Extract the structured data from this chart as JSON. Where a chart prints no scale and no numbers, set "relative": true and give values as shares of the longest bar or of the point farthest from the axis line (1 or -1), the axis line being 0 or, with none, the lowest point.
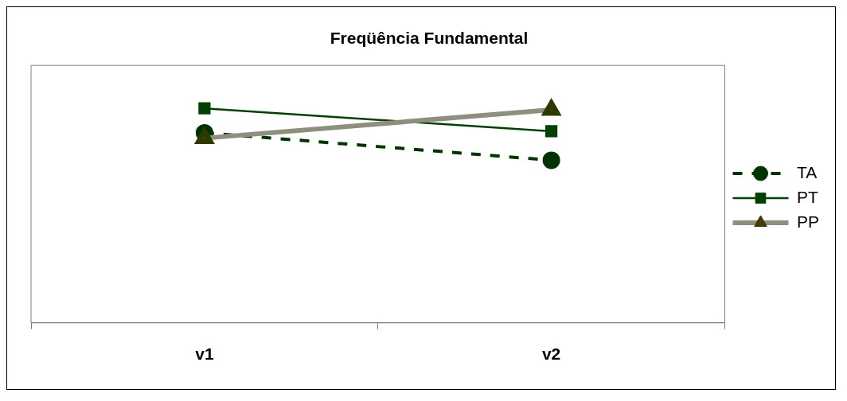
{
  "chart_data": {
    "type": "line",
    "title": "Freqüência Fundamental",
    "categories": [
      "v1",
      "v2"
    ],
    "relative": true,
    "legend": "right",
    "grid": false,
    "series": [
      {
        "name": "TA",
        "color": "#003300",
        "values": [
          0.886,
          0.758
        ],
        "marker": "circle",
        "line_style": "dashed"
      },
      {
        "name": "PT",
        "color": "#004000",
        "values": [
          1,
          0.893
        ],
        "marker": "square",
        "line_style": "solid"
      },
      {
        "name": "PP",
        "color": "#8f8f80",
        "values": [
          0.861,
          0.993
        ],
        "marker": "triangle",
        "line_style": "solid"
      }
    ]
  }
}
